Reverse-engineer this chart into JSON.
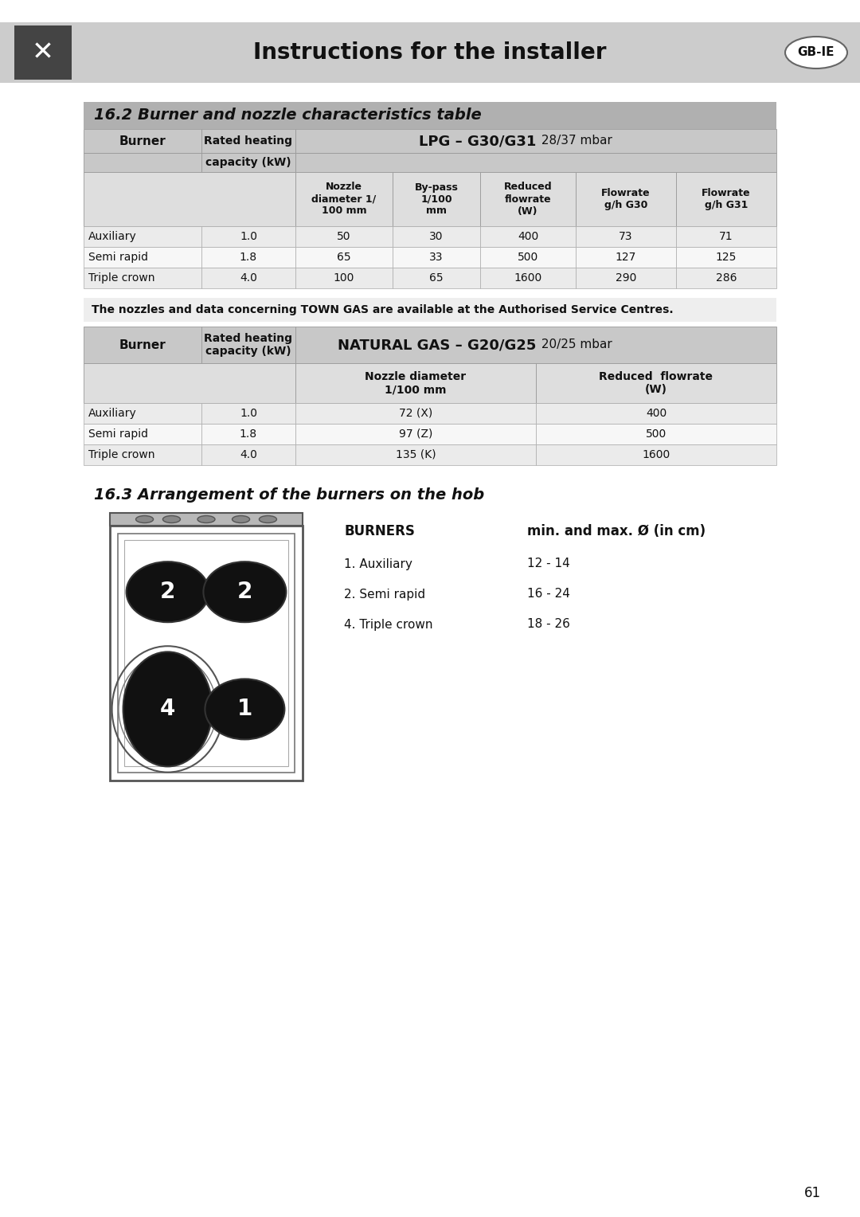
{
  "page_title": "Instructions for the installer",
  "gb_ie_label": "GB-IE",
  "section1_title": "16.2 Burner and nozzle characteristics table",
  "burner_col": "Burner",
  "rated_col_line1": "Rated heating",
  "rated_col_line2": "capacity (kW)",
  "lpg_header_bold": "LPG – G30/G31",
  "lpg_header_normal": " 28/37 mbar",
  "lpg_col_headers": [
    "Nozzle\ndiameter 1/\n100 mm",
    "By-pass\n1/100\nmm",
    "Reduced\nflowrate\n(W)",
    "Flowrate\ng/h G30",
    "Flowrate\ng/h G31"
  ],
  "lpg_data": [
    [
      "Auxiliary",
      "1.0",
      "50",
      "30",
      "400",
      "73",
      "71"
    ],
    [
      "Semi rapid",
      "1.8",
      "65",
      "33",
      "500",
      "127",
      "125"
    ],
    [
      "Triple crown",
      "4.0",
      "100",
      "65",
      "1600",
      "290",
      "286"
    ]
  ],
  "town_gas_note": "The nozzles and data concerning TOWN GAS are available at the Authorised Service Centres.",
  "ng_header_bold": "NATURAL GAS – G20/G25",
  "ng_header_normal": " 20/25 mbar",
  "ng_col_headers": [
    "Nozzle diameter\n1/100 mm",
    "Reduced  flowrate\n(W)"
  ],
  "ng_data": [
    [
      "Auxiliary",
      "1.0",
      "72 (X)",
      "400"
    ],
    [
      "Semi rapid",
      "1.8",
      "97 (Z)",
      "500"
    ],
    [
      "Triple crown",
      "4.0",
      "135 (K)",
      "1600"
    ]
  ],
  "section2_title": "16.3 Arrangement of the burners on the hob",
  "burners_label": "BURNERS",
  "min_max_label": "min. and max. Ø (in cm)",
  "burner_list": [
    [
      "1. Auxiliary",
      "12 - 14"
    ],
    [
      "2. Semi rapid",
      "16 - 24"
    ],
    [
      "4. Triple crown",
      "18 - 26"
    ]
  ],
  "bg_color": "#ffffff",
  "header_bg": "#cccccc",
  "section_title_bg": "#b0b0b0",
  "table_header_bg": "#c8c8c8",
  "table_subheader_bg": "#dedede",
  "row_bg_odd": "#ebebeb",
  "row_bg_even": "#f7f7f7",
  "note_bg": "#eeeeee",
  "page_num": "61"
}
